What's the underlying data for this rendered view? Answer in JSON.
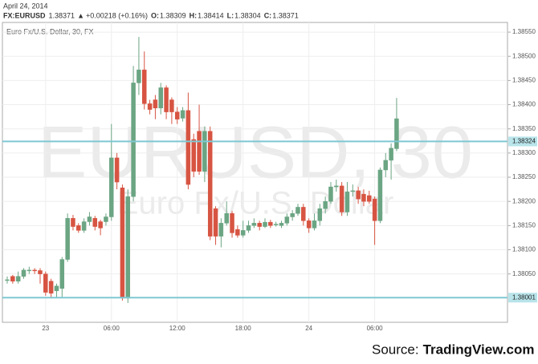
{
  "header": {
    "date": "April 24, 2014",
    "symbol": "FX:EURUSD",
    "last": "1.38371",
    "arrow": "▲",
    "change": "+0.00218 (+0.16%)",
    "ohlc": [
      {
        "label": "O:",
        "value": "1.38309"
      },
      {
        "label": "H:",
        "value": "1.38414"
      },
      {
        "label": "L:",
        "value": "1.38304"
      },
      {
        "label": "C:",
        "value": "1.38371"
      }
    ]
  },
  "chart_data": {
    "type": "candlestick",
    "title": "Euro Fx/U.S. Dollar, 30, FX",
    "watermark": "EURUSD, 30",
    "watermark_subtitle": "Euro Fx/U.S. Dollar",
    "categories": [
      null,
      null,
      null,
      null,
      null,
      null,
      null,
      "23",
      null,
      null,
      null,
      null,
      null,
      null,
      null,
      null,
      null,
      null,
      null,
      "06:00",
      null,
      null,
      null,
      null,
      null,
      null,
      null,
      null,
      null,
      null,
      null,
      "12:00",
      null,
      null,
      null,
      null,
      null,
      null,
      null,
      null,
      null,
      null,
      null,
      "18:00",
      null,
      null,
      null,
      null,
      null,
      null,
      null,
      null,
      null,
      null,
      null,
      "24",
      null,
      null,
      null,
      null,
      null,
      null,
      null,
      null,
      null,
      null,
      null,
      "06:00",
      null,
      null,
      null,
      null
    ],
    "open": [
      1.38037,
      1.38045,
      1.38035,
      1.38045,
      1.38057,
      1.38058,
      1.38057,
      1.3805,
      1.38035,
      1.38015,
      1.3802,
      1.3808,
      1.38165,
      1.3815,
      1.3814,
      1.38158,
      1.38165,
      1.38158,
      1.38158,
      1.38168,
      1.3829,
      1.38228,
      1.38,
      1.3821,
      1.38445,
      1.38472,
      1.38402,
      1.3841,
      1.38393,
      1.38435,
      1.3841,
      1.38385,
      1.38372,
      1.38388,
      1.38328,
      1.38345,
      1.38262,
      1.38345,
      1.38185,
      1.38128,
      1.38155,
      1.38175,
      1.38142,
      1.3813,
      1.3814,
      1.3815,
      1.38155,
      1.38148,
      1.38157,
      1.38152,
      1.3815,
      1.38155,
      1.38168,
      1.38175,
      1.38188,
      1.3816,
      1.38145,
      1.3816,
      1.38185,
      1.382,
      1.3823,
      1.38232,
      1.38178,
      1.38222,
      1.38222,
      1.38215,
      1.38212,
      1.38205,
      1.3816,
      1.38265,
      1.38285,
      1.38309
    ],
    "high": [
      1.38045,
      1.38048,
      1.38055,
      1.38062,
      1.38065,
      1.38062,
      1.38062,
      1.38055,
      1.3804,
      1.3803,
      1.38085,
      1.38175,
      1.38172,
      1.38155,
      1.38165,
      1.38178,
      1.3817,
      1.38162,
      1.38175,
      1.3836,
      1.383,
      1.38235,
      1.38225,
      1.3848,
      1.3854,
      1.3851,
      1.3841,
      1.3842,
      1.38445,
      1.3844,
      1.38415,
      1.38395,
      1.38395,
      1.38425,
      1.3834,
      1.384,
      1.38355,
      1.38355,
      1.3819,
      1.38165,
      1.382,
      1.3818,
      1.3815,
      1.3816,
      1.3816,
      1.38165,
      1.3816,
      1.38165,
      1.38162,
      1.38158,
      1.3816,
      1.38175,
      1.38182,
      1.38195,
      1.38195,
      1.38165,
      1.38175,
      1.38195,
      1.3821,
      1.3824,
      1.38245,
      1.3824,
      1.3824,
      1.38235,
      1.3823,
      1.38225,
      1.38222,
      1.3821,
      1.3827,
      1.383,
      1.3832,
      1.38414
    ],
    "low": [
      1.3803,
      1.3803,
      1.3803,
      1.3804,
      1.3805,
      1.3805,
      1.3803,
      1.38005,
      1.38002,
      1.38,
      1.38,
      1.38075,
      1.3814,
      1.38135,
      1.38135,
      1.3815,
      1.3814,
      1.3813,
      1.3815,
      1.3816,
      1.38225,
      1.37995,
      1.3799,
      1.382,
      1.3842,
      1.3839,
      1.3838,
      1.3837,
      1.3838,
      1.3837,
      1.3836,
      1.3836,
      1.38365,
      1.38225,
      1.3825,
      1.38255,
      1.3824,
      1.3812,
      1.3811,
      1.38105,
      1.3815,
      1.38125,
      1.38125,
      1.38125,
      1.38135,
      1.38145,
      1.3814,
      1.38145,
      1.38145,
      1.38148,
      1.38145,
      1.3815,
      1.3816,
      1.3817,
      1.3815,
      1.38135,
      1.3814,
      1.3815,
      1.38175,
      1.38195,
      1.3822,
      1.3817,
      1.3817,
      1.3821,
      1.38195,
      1.3819,
      1.38195,
      1.3811,
      1.38155,
      1.3825,
      1.38245,
      1.38304
    ],
    "close": [
      1.38038,
      1.38035,
      1.38045,
      1.38058,
      1.38058,
      1.38057,
      1.3805,
      1.38012,
      1.3801,
      1.38025,
      1.3808,
      1.38165,
      1.38148,
      1.3814,
      1.38158,
      1.38168,
      1.38148,
      1.38145,
      1.38168,
      1.3829,
      1.3824,
      1.38,
      1.3821,
      1.38445,
      1.38472,
      1.38402,
      1.3839,
      1.38393,
      1.38435,
      1.38385,
      1.38385,
      1.3837,
      1.38388,
      1.38235,
      1.38262,
      1.38262,
      1.38345,
      1.38128,
      1.38128,
      1.38155,
      1.38175,
      1.38135,
      1.3813,
      1.3814,
      1.3815,
      1.38155,
      1.38148,
      1.38157,
      1.3815,
      1.38153,
      1.38155,
      1.38168,
      1.38175,
      1.38188,
      1.3816,
      1.38145,
      1.3816,
      1.38185,
      1.382,
      1.3823,
      1.38232,
      1.38178,
      1.3822,
      1.38222,
      1.38205,
      1.382,
      1.382,
      1.3816,
      1.38265,
      1.38285,
      1.3831,
      1.38371
    ],
    "up_color": "#6ba583",
    "down_color": "#d75442",
    "ylim": [
      1.3795,
      1.3857
    ],
    "yticks": [
      {
        "value": 1.3855,
        "label": "1.38550"
      },
      {
        "value": 1.385,
        "label": "1.38500"
      },
      {
        "value": 1.3845,
        "label": "1.38450"
      },
      {
        "value": 1.384,
        "label": "1.38400"
      },
      {
        "value": 1.3835,
        "label": "1.38350"
      },
      {
        "value": 1.383,
        "label": "1.38300"
      },
      {
        "value": 1.3825,
        "label": "1.38250"
      },
      {
        "value": 1.382,
        "label": "1.38200"
      },
      {
        "value": 1.3815,
        "label": "1.38150"
      },
      {
        "value": 1.381,
        "label": "1.38100"
      },
      {
        "value": 1.3805,
        "label": "1.38050"
      }
    ],
    "hlines": [
      {
        "value": 1.38324,
        "label": "1.38324"
      },
      {
        "value": 1.38001,
        "label": "1.38001"
      }
    ],
    "hline_color": "#7ec8d3",
    "grid": true,
    "source": {
      "prefix": "Source:",
      "name": "TradingView.com"
    }
  }
}
